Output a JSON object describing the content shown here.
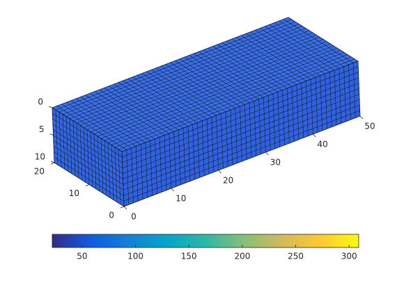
{
  "chart_data": {
    "type": "voxel",
    "xlim": [
      0,
      50
    ],
    "ylim": [
      0,
      20
    ],
    "zlim": [
      0,
      10
    ],
    "xticks": [
      0,
      10,
      20,
      30,
      40,
      50
    ],
    "yticks": [
      0,
      10,
      20
    ],
    "zticks": [
      0,
      5,
      10
    ],
    "z_reversed": true,
    "colorbar": {
      "clim": [
        22,
        309
      ],
      "ticks": [
        50,
        100,
        150,
        200,
        250,
        300
      ],
      "colormap": [
        "#352a87",
        "#0f5cdd",
        "#1481d6",
        "#06a4ca",
        "#2eb7a4",
        "#87bf77",
        "#d1bb59",
        "#fec832",
        "#f9fb0e"
      ]
    }
  }
}
